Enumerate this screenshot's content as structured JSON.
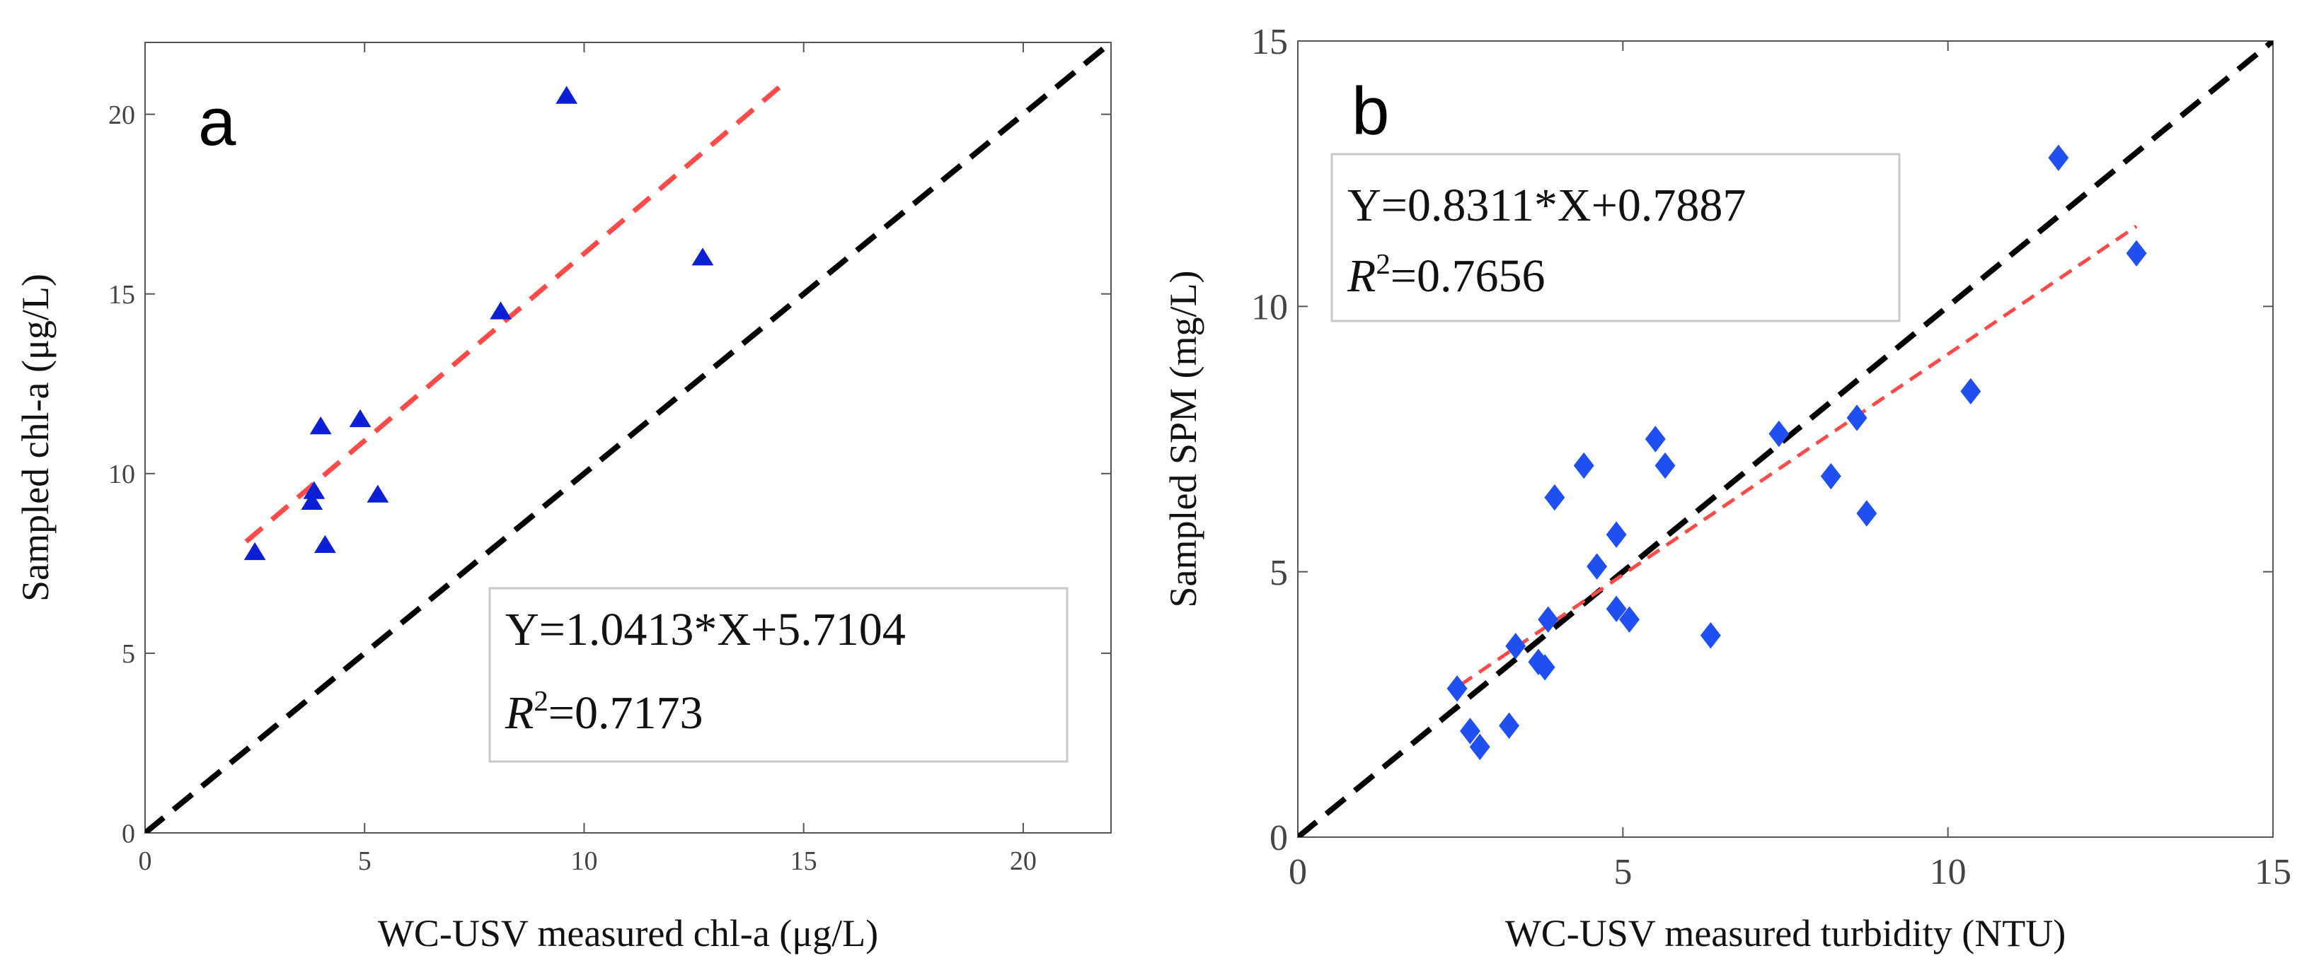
{
  "chart_data": [
    {
      "type": "scatter",
      "panel_label": "a",
      "xlabel": "WC-USV measured chl-a (μg/L)",
      "ylabel": "Sampled chl-a (μg/L)",
      "xlim": [
        0,
        22
      ],
      "ylim": [
        0,
        22
      ],
      "xticks": [
        "0",
        "5",
        "10",
        "15",
        "20"
      ],
      "yticks": [
        "0",
        "5",
        "10",
        "15",
        "20"
      ],
      "equation": "Y=1.0413*X+5.7104",
      "r2_label": "R",
      "r2_value": "=0.7173",
      "marker": "triangle",
      "marker_color": "#0b1fd6",
      "fit_color": "#ff4a4a",
      "identity_color": "#000000",
      "fit_x": [
        2.3,
        14.5
      ],
      "points": [
        {
          "x": 2.5,
          "y": 7.8
        },
        {
          "x": 3.8,
          "y": 9.2
        },
        {
          "x": 3.85,
          "y": 9.5
        },
        {
          "x": 4.0,
          "y": 11.3
        },
        {
          "x": 4.1,
          "y": 8.0
        },
        {
          "x": 4.9,
          "y": 11.5
        },
        {
          "x": 5.3,
          "y": 9.4
        },
        {
          "x": 8.1,
          "y": 14.5
        },
        {
          "x": 9.6,
          "y": 20.5
        },
        {
          "x": 12.7,
          "y": 16.0
        }
      ]
    },
    {
      "type": "scatter",
      "panel_label": "b",
      "xlabel": "WC-USV measured turbidity (NTU)",
      "ylabel": "Sampled SPM (mg/L)",
      "xlim": [
        0,
        15
      ],
      "ylim": [
        0,
        15
      ],
      "xticks": [
        "0",
        "5",
        "10",
        "15"
      ],
      "yticks": [
        "0",
        "5",
        "10",
        "15"
      ],
      "equation": "Y=0.8311*X+0.7887",
      "r2_label": "R",
      "r2_value": "=0.7656",
      "marker": "diamond",
      "marker_color": "#1f4ff0",
      "fit_color": "#ff4a4a",
      "identity_color": "#000000",
      "fit_x": [
        2.5,
        12.9
      ],
      "points": [
        {
          "x": 2.45,
          "y": 2.8
        },
        {
          "x": 2.65,
          "y": 2.0
        },
        {
          "x": 2.8,
          "y": 1.7
        },
        {
          "x": 3.25,
          "y": 2.1
        },
        {
          "x": 3.35,
          "y": 3.6
        },
        {
          "x": 3.7,
          "y": 3.3
        },
        {
          "x": 3.8,
          "y": 3.2
        },
        {
          "x": 3.85,
          "y": 4.1
        },
        {
          "x": 3.95,
          "y": 6.4
        },
        {
          "x": 4.4,
          "y": 7.0
        },
        {
          "x": 4.6,
          "y": 5.1
        },
        {
          "x": 4.9,
          "y": 5.7
        },
        {
          "x": 4.9,
          "y": 4.3
        },
        {
          "x": 5.1,
          "y": 4.1
        },
        {
          "x": 5.5,
          "y": 7.5
        },
        {
          "x": 5.65,
          "y": 7.0
        },
        {
          "x": 6.35,
          "y": 3.8
        },
        {
          "x": 7.4,
          "y": 7.6
        },
        {
          "x": 8.2,
          "y": 6.8
        },
        {
          "x": 8.6,
          "y": 7.9
        },
        {
          "x": 8.75,
          "y": 6.1
        },
        {
          "x": 10.35,
          "y": 8.4
        },
        {
          "x": 11.7,
          "y": 12.8
        },
        {
          "x": 12.9,
          "y": 11.0
        }
      ]
    }
  ]
}
